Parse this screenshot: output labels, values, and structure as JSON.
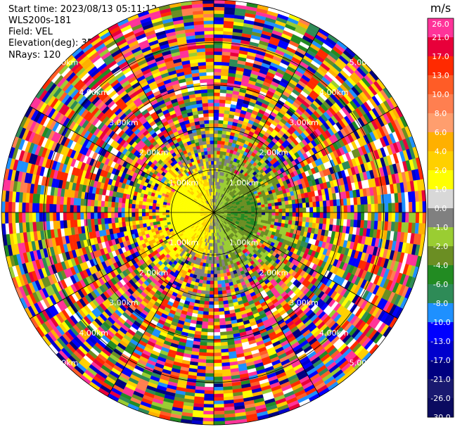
{
  "header": {
    "start_time": "Start time: 2023/08/13 05:11:12",
    "instrument": "WLS200s-181",
    "field": "Field: VEL",
    "elevation": "Elevation(deg): 35.30",
    "nrays": "NRays: 120"
  },
  "chart_data": {
    "type": "heatmap",
    "projection": "polar-ppi",
    "nrays": 120,
    "range_labels": [
      "1.00km",
      "2.00km",
      "3.00km",
      "4.00km",
      "5.00km"
    ],
    "range_km": [
      1,
      2,
      3,
      4,
      5
    ],
    "max_range_km": 5,
    "colorbar": {
      "unit": "m/s",
      "ticks": [
        "26.0",
        "21.0",
        "17.0",
        "13.0",
        "10.0",
        "8.0",
        "6.0",
        "4.0",
        "2.0",
        "1.0",
        "0.0",
        "-1.0",
        "-2.0",
        "-4.0",
        "-6.0",
        "-8.0",
        "-10.0",
        "-13.0",
        "-17.0",
        "-21.0",
        "-26.0",
        "-30.0"
      ],
      "colors": [
        "#ff3399",
        "#e8003a",
        "#ff2a00",
        "#ff5c26",
        "#ff7f50",
        "#ff9e6e",
        "#ffb000",
        "#ffd000",
        "#ffff00",
        "#d8d8d8",
        "#808080",
        "#9acd32",
        "#6b8e23",
        "#228b22",
        "#2e8b57",
        "#1e90ff",
        "#0000ff",
        "#0000cd",
        "#000080",
        "#191970",
        "#0b0b60",
        "#111111"
      ],
      "lim": [
        -30,
        26
      ]
    },
    "pattern": "near range (under about 1 km): yellow positive velocities on the west side, gray and olive-green negative velocities on the east side; far range: multicolored noise"
  }
}
